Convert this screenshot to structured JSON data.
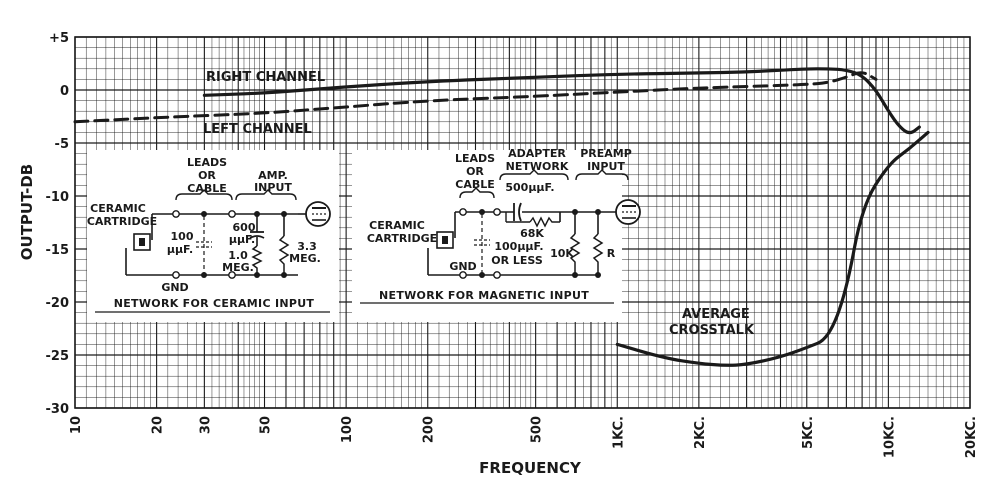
{
  "chart_data": {
    "type": "line",
    "xlabel": "FREQUENCY",
    "ylabel": "OUTPUT-DB",
    "x_scale": "log",
    "xlim": [
      10,
      20000
    ],
    "ylim": [
      -30,
      5
    ],
    "grid": true,
    "x_ticks": [
      {
        "value": 10,
        "label": "10"
      },
      {
        "value": 20,
        "label": "20"
      },
      {
        "value": 30,
        "label": "30"
      },
      {
        "value": 50,
        "label": "50"
      },
      {
        "value": 100,
        "label": "100"
      },
      {
        "value": 200,
        "label": "200"
      },
      {
        "value": 500,
        "label": "500"
      },
      {
        "value": 1000,
        "label": "1KC."
      },
      {
        "value": 2000,
        "label": "2KC."
      },
      {
        "value": 5000,
        "label": "5KC."
      },
      {
        "value": 10000,
        "label": "10KC."
      },
      {
        "value": 20000,
        "label": "20KC."
      }
    ],
    "y_ticks": [
      {
        "value": 5,
        "label": "+5"
      },
      {
        "value": 0,
        "label": "0"
      },
      {
        "value": -5,
        "label": "-5"
      },
      {
        "value": -10,
        "label": "-10"
      },
      {
        "value": -15,
        "label": "-15"
      },
      {
        "value": -20,
        "label": "-20"
      },
      {
        "value": -25,
        "label": "-25"
      },
      {
        "value": -30,
        "label": "-30"
      }
    ],
    "series": [
      {
        "name": "RIGHT CHANNEL",
        "style": "solid",
        "x": [
          30,
          50,
          100,
          200,
          500,
          1000,
          2000,
          3000,
          5000,
          6000,
          7000,
          8000,
          9000,
          10000,
          11000,
          12000,
          13000
        ],
        "y": [
          -0.5,
          -0.3,
          0.3,
          0.8,
          1.2,
          1.5,
          1.6,
          1.7,
          2.0,
          2.0,
          1.9,
          1.4,
          0,
          -2,
          -3.5,
          -4.2,
          -3.5
        ]
      },
      {
        "name": "LEFT CHANNEL",
        "style": "dashed",
        "x": [
          10,
          20,
          50,
          100,
          200,
          500,
          1000,
          2000,
          5000,
          6000,
          7000,
          8000,
          9000
        ],
        "y": [
          -3,
          -2.6,
          -2.2,
          -1.6,
          -1.0,
          -0.6,
          -0.2,
          0.2,
          0.5,
          0.7,
          1.2,
          1.8,
          1.0
        ]
      },
      {
        "name": "AVERAGE CROSSTALK",
        "style": "solid",
        "x": [
          1000,
          1500,
          2000,
          2500,
          3000,
          4000,
          5000,
          6000,
          7000,
          8000,
          10000,
          12000,
          14000
        ],
        "y": [
          -24.0,
          -25.3,
          -25.8,
          -26.0,
          -25.9,
          -25.2,
          -24.3,
          -23.5,
          -19,
          -11,
          -7,
          -5.5,
          -4
        ]
      }
    ],
    "annotations": {
      "right_channel": "RIGHT CHANNEL",
      "left_channel": "LEFT CHANNEL",
      "crosstalk_line1": "AVERAGE",
      "crosstalk_line2": "CROSSTALK"
    }
  },
  "inset_ceramic": {
    "caption": "NETWORK FOR CERAMIC INPUT",
    "leads_1": "LEADS",
    "leads_2": "OR",
    "leads_3": "CABLE",
    "amp_1": "AMP.",
    "amp_2": "INPUT",
    "cartridge_1": "CERAMIC",
    "cartridge_2": "CARTRIDGE",
    "cap_1": "100",
    "cap_2": "μμF.",
    "cap2_1": "600",
    "cap2_2": "μμF.",
    "res1_1": "1.0",
    "res1_2": "MEG.",
    "res2_1": "3.3",
    "res2_2": "MEG.",
    "gnd": "GND"
  },
  "inset_magnetic": {
    "caption": "NETWORK FOR MAGNETIC INPUT",
    "leads_1": "LEADS",
    "leads_2": "OR",
    "leads_3": "CABLE",
    "adapter_1": "ADAPTER",
    "adapter_2": "NETWORK",
    "preamp_1": "PREAMP",
    "preamp_2": "INPUT",
    "cartridge_1": "CERAMIC",
    "cartridge_2": "CARTRIDGE",
    "series_cap": "500μμF.",
    "series_res": "68K",
    "shunt_cap_1": "100μμF.",
    "shunt_cap_2": "OR LESS",
    "res_10k": "10K",
    "res_r": "R",
    "gnd": "GND"
  }
}
